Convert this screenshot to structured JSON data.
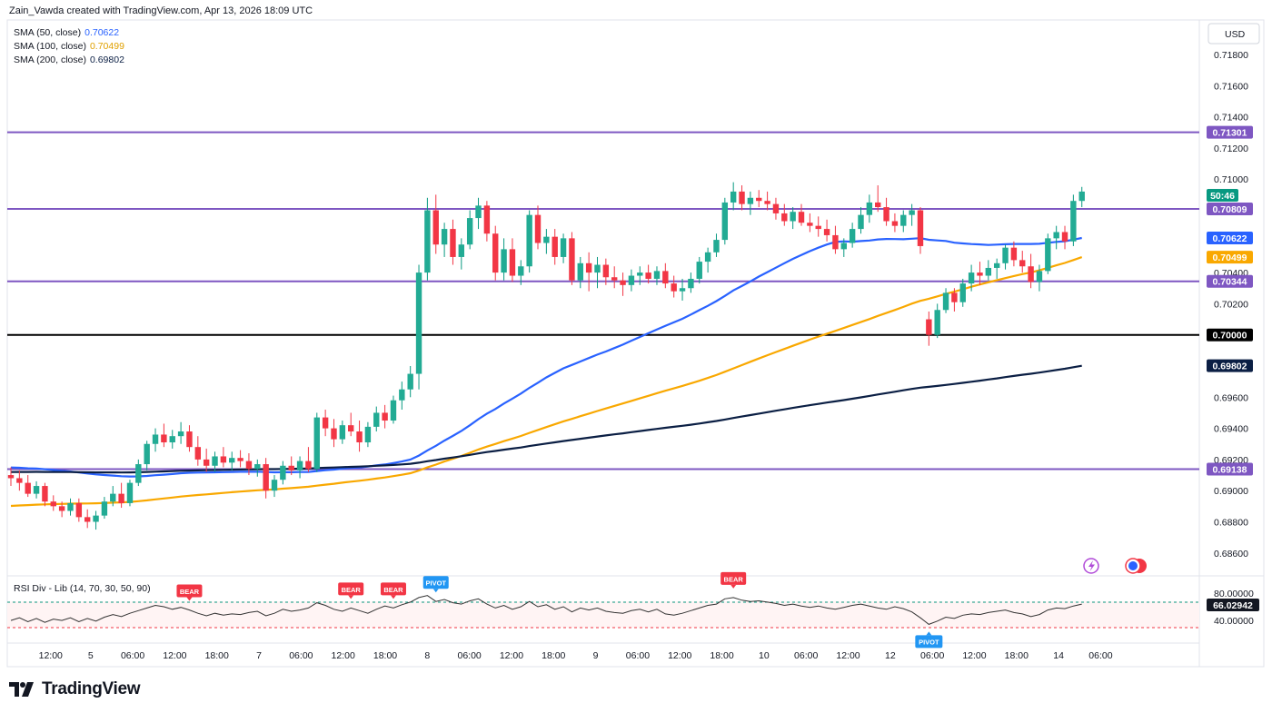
{
  "header": {
    "attribution": "Zain_Vawda created with TradingView.com, Apr 13, 2026 18:09 UTC"
  },
  "indicators": [
    {
      "label": "SMA (50, close)",
      "value": "0.70622",
      "color": "#2962ff"
    },
    {
      "label": "SMA (100, close)",
      "value": "0.70499",
      "color": "#f9a800"
    },
    {
      "label": "SMA (200, close)",
      "value": "0.69802",
      "color": "#0b1f44"
    }
  ],
  "rsi_label": "RSI Div - Lib (14, 70, 30, 50, 90)",
  "rsi_value_label": "66.02942",
  "currency": "USD",
  "countdown": "50:46",
  "footer": {
    "brand": "TradingView"
  },
  "chart_data": {
    "type": "candlestick",
    "ylim": [
      0.685,
      0.7195
    ],
    "y_ticks": [
      "0.71800",
      "0.71600",
      "0.71400",
      "0.71200",
      "0.71000",
      "0.70400",
      "0.70200",
      "0.69600",
      "0.69400",
      "0.69200",
      "0.69000",
      "0.68800",
      "0.68600"
    ],
    "x_ticks": [
      {
        "label": "12:00",
        "t": 2.3
      },
      {
        "label": "5",
        "t": 8
      },
      {
        "label": "06:00",
        "t": 14
      },
      {
        "label": "12:00",
        "t": 20
      },
      {
        "label": "18:00",
        "t": 26
      },
      {
        "label": "7",
        "t": 32
      },
      {
        "label": "06:00",
        "t": 38
      },
      {
        "label": "12:00",
        "t": 44
      },
      {
        "label": "18:00",
        "t": 50
      },
      {
        "label": "8",
        "t": 56
      },
      {
        "label": "06:00",
        "t": 62
      },
      {
        "label": "12:00",
        "t": 68
      },
      {
        "label": "18:00",
        "t": 74
      },
      {
        "label": "9",
        "t": 80
      },
      {
        "label": "06:00",
        "t": 86
      },
      {
        "label": "12:00",
        "t": 92
      },
      {
        "label": "18:00",
        "t": 98
      },
      {
        "label": "10",
        "t": 104
      },
      {
        "label": "06:00",
        "t": 110
      },
      {
        "label": "12:00",
        "t": 116
      },
      {
        "label": "12",
        "t": 122
      },
      {
        "label": "06:00",
        "t": 128
      },
      {
        "label": "12:00",
        "t": 134
      },
      {
        "label": "18:00",
        "t": 140
      },
      {
        "label": "14",
        "t": 146
      },
      {
        "label": "06:00",
        "t": 152
      }
    ],
    "horizontal_levels": [
      {
        "value": "0.71301",
        "color": "#7e57c2"
      },
      {
        "value": "0.70809",
        "color": "#7e57c2"
      },
      {
        "value": "0.70344",
        "color": "#7e57c2"
      },
      {
        "value": "0.70000",
        "color": "#000000"
      },
      {
        "value": "0.69138",
        "color": "#7e57c2"
      }
    ],
    "last_price": {
      "value": "0.70922",
      "color": "#089981"
    },
    "sma_badges": [
      {
        "value": "0.70622",
        "color": "#2962ff"
      },
      {
        "value": "0.70499",
        "color": "#f9a800"
      },
      {
        "value": "0.69802",
        "color": "#0b1f44"
      }
    ],
    "candles": [
      [
        0.691,
        0.6915,
        0.6903,
        0.6908
      ],
      [
        0.6908,
        0.6913,
        0.69,
        0.6905
      ],
      [
        0.6905,
        0.691,
        0.6896,
        0.6898
      ],
      [
        0.6898,
        0.6906,
        0.6895,
        0.6903
      ],
      [
        0.6903,
        0.6905,
        0.689,
        0.6893
      ],
      [
        0.6893,
        0.6897,
        0.6887,
        0.689
      ],
      [
        0.689,
        0.6893,
        0.6883,
        0.6887
      ],
      [
        0.6887,
        0.6895,
        0.6884,
        0.6892
      ],
      [
        0.6892,
        0.6895,
        0.688,
        0.6883
      ],
      [
        0.6883,
        0.6888,
        0.6876,
        0.688
      ],
      [
        0.688,
        0.6887,
        0.6875,
        0.6884
      ],
      [
        0.6884,
        0.6896,
        0.6882,
        0.6893
      ],
      [
        0.6893,
        0.6903,
        0.689,
        0.6898
      ],
      [
        0.6898,
        0.6905,
        0.6889,
        0.6892
      ],
      [
        0.6892,
        0.6907,
        0.689,
        0.6905
      ],
      [
        0.6905,
        0.692,
        0.6903,
        0.6917
      ],
      [
        0.6917,
        0.6932,
        0.6913,
        0.693
      ],
      [
        0.693,
        0.694,
        0.6925,
        0.6936
      ],
      [
        0.6936,
        0.6943,
        0.6928,
        0.6931
      ],
      [
        0.6931,
        0.6939,
        0.6927,
        0.6935
      ],
      [
        0.6935,
        0.6944,
        0.693,
        0.6938
      ],
      [
        0.6938,
        0.6942,
        0.6925,
        0.6928
      ],
      [
        0.6928,
        0.6935,
        0.6916,
        0.692
      ],
      [
        0.692,
        0.6927,
        0.6912,
        0.6916
      ],
      [
        0.6916,
        0.6925,
        0.6912,
        0.6922
      ],
      [
        0.6922,
        0.6928,
        0.6915,
        0.6918
      ],
      [
        0.6918,
        0.6925,
        0.6913,
        0.6921
      ],
      [
        0.6921,
        0.6926,
        0.6915,
        0.6919
      ],
      [
        0.6919,
        0.6924,
        0.691,
        0.6914
      ],
      [
        0.6914,
        0.692,
        0.6909,
        0.6917
      ],
      [
        0.6917,
        0.6921,
        0.6895,
        0.69
      ],
      [
        0.69,
        0.691,
        0.6896,
        0.6907
      ],
      [
        0.6907,
        0.6919,
        0.6904,
        0.6916
      ],
      [
        0.6916,
        0.6922,
        0.691,
        0.6913
      ],
      [
        0.6913,
        0.6922,
        0.6908,
        0.6919
      ],
      [
        0.6919,
        0.6928,
        0.6912,
        0.6914
      ],
      [
        0.6914,
        0.695,
        0.6912,
        0.6947
      ],
      [
        0.6947,
        0.6952,
        0.6935,
        0.694
      ],
      [
        0.694,
        0.6946,
        0.6928,
        0.6933
      ],
      [
        0.6933,
        0.6945,
        0.693,
        0.6942
      ],
      [
        0.6942,
        0.695,
        0.6935,
        0.6938
      ],
      [
        0.6938,
        0.6945,
        0.6925,
        0.6931
      ],
      [
        0.6931,
        0.6944,
        0.6928,
        0.6941
      ],
      [
        0.6941,
        0.6954,
        0.6938,
        0.695
      ],
      [
        0.695,
        0.6955,
        0.694,
        0.6945
      ],
      [
        0.6945,
        0.6961,
        0.6943,
        0.6958
      ],
      [
        0.6958,
        0.697,
        0.6952,
        0.6965
      ],
      [
        0.6965,
        0.698,
        0.696,
        0.6975
      ],
      [
        0.6975,
        0.7045,
        0.6965,
        0.704
      ],
      [
        0.704,
        0.7088,
        0.7035,
        0.708
      ],
      [
        0.708,
        0.709,
        0.7052,
        0.7058
      ],
      [
        0.7058,
        0.7072,
        0.705,
        0.7068
      ],
      [
        0.7068,
        0.7074,
        0.7045,
        0.705
      ],
      [
        0.705,
        0.7062,
        0.7042,
        0.7058
      ],
      [
        0.7058,
        0.708,
        0.7055,
        0.7075
      ],
      [
        0.7075,
        0.7088,
        0.7068,
        0.7083
      ],
      [
        0.7083,
        0.7086,
        0.706,
        0.7065
      ],
      [
        0.7065,
        0.707,
        0.7035,
        0.704
      ],
      [
        0.704,
        0.7062,
        0.7035,
        0.7055
      ],
      [
        0.7055,
        0.7062,
        0.7034,
        0.7038
      ],
      [
        0.7038,
        0.7048,
        0.7032,
        0.7044
      ],
      [
        0.7044,
        0.708,
        0.704,
        0.7077
      ],
      [
        0.7077,
        0.7083,
        0.7055,
        0.7059
      ],
      [
        0.7059,
        0.7068,
        0.7052,
        0.7063
      ],
      [
        0.7063,
        0.7068,
        0.7045,
        0.705
      ],
      [
        0.705,
        0.7065,
        0.7046,
        0.7062
      ],
      [
        0.7062,
        0.7066,
        0.7032,
        0.7035
      ],
      [
        0.7035,
        0.705,
        0.703,
        0.7046
      ],
      [
        0.7046,
        0.7053,
        0.7028,
        0.704
      ],
      [
        0.704,
        0.705,
        0.703,
        0.7045
      ],
      [
        0.7045,
        0.7049,
        0.7032,
        0.7037
      ],
      [
        0.7037,
        0.7044,
        0.703,
        0.7035
      ],
      [
        0.7035,
        0.704,
        0.7025,
        0.7032
      ],
      [
        0.7032,
        0.7042,
        0.7028,
        0.7038
      ],
      [
        0.7038,
        0.7044,
        0.7032,
        0.704
      ],
      [
        0.704,
        0.7045,
        0.7033,
        0.7036
      ],
      [
        0.7036,
        0.7044,
        0.7032,
        0.7041
      ],
      [
        0.7041,
        0.7046,
        0.703,
        0.7033
      ],
      [
        0.7033,
        0.7038,
        0.7024,
        0.7028
      ],
      [
        0.7028,
        0.7036,
        0.7022,
        0.703
      ],
      [
        0.703,
        0.704,
        0.7027,
        0.7036
      ],
      [
        0.7036,
        0.705,
        0.7033,
        0.7047
      ],
      [
        0.7047,
        0.7056,
        0.704,
        0.7053
      ],
      [
        0.7053,
        0.7065,
        0.705,
        0.7061
      ],
      [
        0.7061,
        0.7088,
        0.7058,
        0.7085
      ],
      [
        0.7085,
        0.7098,
        0.708,
        0.7092
      ],
      [
        0.7092,
        0.7096,
        0.708,
        0.7084
      ],
      [
        0.7084,
        0.7092,
        0.7077,
        0.7088
      ],
      [
        0.7088,
        0.7093,
        0.7082,
        0.7086
      ],
      [
        0.7086,
        0.7092,
        0.708,
        0.7084
      ],
      [
        0.7084,
        0.7088,
        0.7074,
        0.7078
      ],
      [
        0.7078,
        0.7084,
        0.707,
        0.7073
      ],
      [
        0.7073,
        0.7082,
        0.7068,
        0.7079
      ],
      [
        0.7079,
        0.7084,
        0.707,
        0.7072
      ],
      [
        0.7072,
        0.7078,
        0.7066,
        0.707
      ],
      [
        0.707,
        0.7076,
        0.7063,
        0.7068
      ],
      [
        0.7068,
        0.7074,
        0.706,
        0.7064
      ],
      [
        0.7064,
        0.707,
        0.7052,
        0.7055
      ],
      [
        0.7055,
        0.7062,
        0.705,
        0.7059
      ],
      [
        0.7059,
        0.7072,
        0.7056,
        0.7068
      ],
      [
        0.7068,
        0.7082,
        0.7065,
        0.7077
      ],
      [
        0.7077,
        0.709,
        0.7072,
        0.7085
      ],
      [
        0.7085,
        0.7096,
        0.7079,
        0.7082
      ],
      [
        0.7082,
        0.7088,
        0.707,
        0.7073
      ],
      [
        0.7073,
        0.7078,
        0.7066,
        0.707
      ],
      [
        0.707,
        0.708,
        0.7066,
        0.7077
      ],
      [
        0.7077,
        0.7084,
        0.707,
        0.708
      ],
      [
        0.708,
        0.7082,
        0.7052,
        0.7057
      ],
      [
        0.701,
        0.7015,
        0.6993,
        0.7
      ],
      [
        0.7,
        0.702,
        0.6998,
        0.7016
      ],
      [
        0.7016,
        0.703,
        0.7014,
        0.7027
      ],
      [
        0.7027,
        0.703,
        0.7015,
        0.7021
      ],
      [
        0.7021,
        0.7036,
        0.7018,
        0.7033
      ],
      [
        0.7033,
        0.7045,
        0.7028,
        0.704
      ],
      [
        0.704,
        0.7047,
        0.7032,
        0.7038
      ],
      [
        0.7038,
        0.7048,
        0.7035,
        0.7043
      ],
      [
        0.7043,
        0.7049,
        0.7036,
        0.7046
      ],
      [
        0.7046,
        0.7058,
        0.7042,
        0.7056
      ],
      [
        0.7056,
        0.706,
        0.7044,
        0.7048
      ],
      [
        0.7048,
        0.7054,
        0.704,
        0.7044
      ],
      [
        0.7044,
        0.7052,
        0.703,
        0.7034
      ],
      [
        0.7034,
        0.7045,
        0.7028,
        0.7041
      ],
      [
        0.7041,
        0.7065,
        0.7039,
        0.7062
      ],
      [
        0.7062,
        0.707,
        0.7055,
        0.7066
      ],
      [
        0.7066,
        0.707,
        0.7055,
        0.706
      ],
      [
        0.706,
        0.709,
        0.7057,
        0.7086
      ],
      [
        0.7086,
        0.7095,
        0.7082,
        0.7092
      ]
    ],
    "rsi_series": [
      41,
      45,
      39,
      44,
      38,
      43,
      41,
      45,
      39,
      44,
      40,
      46,
      50,
      47,
      52,
      56,
      60,
      64,
      62,
      58,
      61,
      57,
      52,
      48,
      52,
      49,
      51,
      50,
      53,
      55,
      48,
      52,
      58,
      55,
      57,
      60,
      68,
      64,
      58,
      55,
      60,
      56,
      52,
      58,
      63,
      60,
      65,
      69,
      76,
      79,
      70,
      73,
      68,
      66,
      71,
      74,
      66,
      60,
      64,
      58,
      62,
      70,
      62,
      65,
      58,
      62,
      54,
      60,
      57,
      60,
      55,
      53,
      52,
      56,
      58,
      54,
      58,
      51,
      49,
      52,
      56,
      60,
      64,
      66,
      74,
      76,
      72,
      70,
      71,
      69,
      67,
      64,
      66,
      63,
      61,
      63,
      60,
      58,
      61,
      64,
      66,
      63,
      60,
      58,
      62,
      59,
      54,
      45,
      35,
      40,
      46,
      44,
      49,
      51,
      50,
      53,
      55,
      57,
      53,
      51,
      47,
      50,
      57,
      60,
      59,
      63,
      66
    ],
    "rsi_levels": [
      "80.00000",
      "40.00000"
    ],
    "signals": [
      {
        "label": "BEAR",
        "i": 21,
        "pos": "above",
        "color": "#f23645"
      },
      {
        "label": "BEAR",
        "i": 40,
        "pos": "above",
        "color": "#f23645"
      },
      {
        "label": "BEAR",
        "i": 45,
        "pos": "above",
        "color": "#f23645"
      },
      {
        "label": "PIVOT",
        "i": 50,
        "pos": "above",
        "color": "#2196f3"
      },
      {
        "label": "BEAR",
        "i": 85,
        "pos": "above",
        "color": "#f23645"
      },
      {
        "label": "PIVOT",
        "i": 108,
        "pos": "below",
        "color": "#2196f3"
      }
    ]
  }
}
